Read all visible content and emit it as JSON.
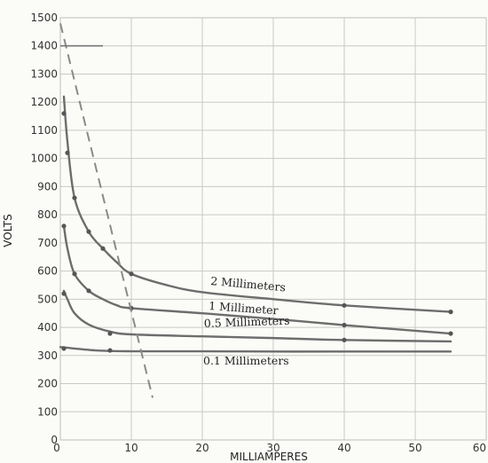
{
  "chart_data": {
    "type": "line",
    "title": "",
    "xlabel": "MILLIAMPERES",
    "ylabel": "VOLTS",
    "xlim": [
      0,
      60
    ],
    "ylim": [
      0,
      1500
    ],
    "x_ticks": [
      "0",
      "10",
      "20",
      "30",
      "40",
      "50",
      "60"
    ],
    "y_ticks": [
      "0",
      "100",
      "200",
      "300",
      "400",
      "500",
      "600",
      "700",
      "800",
      "900",
      "1000",
      "1100",
      "1200",
      "1300",
      "1400",
      "1500"
    ],
    "grid": true,
    "series": [
      {
        "name": "2 Millimeters",
        "points": [
          [
            0.5,
            1220
          ],
          [
            1,
            1060
          ],
          [
            2,
            860
          ],
          [
            4,
            740
          ],
          [
            6,
            680
          ],
          [
            8,
            630
          ],
          [
            10,
            590
          ],
          [
            15,
            550
          ],
          [
            20,
            525
          ],
          [
            30,
            500
          ],
          [
            40,
            478
          ],
          [
            55,
            455
          ]
        ],
        "markers": [
          [
            0.5,
            1160
          ],
          [
            1,
            1020
          ],
          [
            2,
            860
          ],
          [
            4,
            740
          ],
          [
            6,
            680
          ],
          [
            10,
            590
          ],
          [
            40,
            478
          ],
          [
            55,
            455
          ]
        ]
      },
      {
        "name": "1 Millimeter",
        "points": [
          [
            0.5,
            760
          ],
          [
            1,
            680
          ],
          [
            2,
            590
          ],
          [
            4,
            530
          ],
          [
            6,
            500
          ],
          [
            8,
            478
          ],
          [
            10,
            468
          ],
          [
            20,
            450
          ],
          [
            30,
            430
          ],
          [
            40,
            408
          ],
          [
            55,
            378
          ]
        ],
        "markers": [
          [
            0.5,
            760
          ],
          [
            2,
            590
          ],
          [
            4,
            530
          ],
          [
            10,
            468
          ],
          [
            40,
            408
          ],
          [
            55,
            378
          ]
        ]
      },
      {
        "name": "0.5 Millimeters",
        "points": [
          [
            0.5,
            530
          ],
          [
            1,
            500
          ],
          [
            2,
            450
          ],
          [
            4,
            410
          ],
          [
            7,
            385
          ],
          [
            10,
            375
          ],
          [
            20,
            368
          ],
          [
            30,
            362
          ],
          [
            40,
            355
          ],
          [
            55,
            350
          ]
        ],
        "markers": [
          [
            0.5,
            520
          ],
          [
            7,
            378
          ],
          [
            40,
            355
          ]
        ]
      },
      {
        "name": "0.1 Millimeters",
        "points": [
          [
            0,
            330
          ],
          [
            5,
            318
          ],
          [
            10,
            315
          ],
          [
            20,
            315
          ],
          [
            30,
            314
          ],
          [
            40,
            314
          ],
          [
            55,
            314
          ]
        ],
        "markers": [
          [
            0.5,
            325
          ],
          [
            7,
            318
          ]
        ]
      }
    ],
    "dashed_line": {
      "points": [
        [
          0,
          1480
        ],
        [
          13,
          150
        ]
      ]
    },
    "short_line": {
      "points": [
        [
          0,
          1400
        ],
        [
          6,
          1400
        ]
      ]
    }
  }
}
